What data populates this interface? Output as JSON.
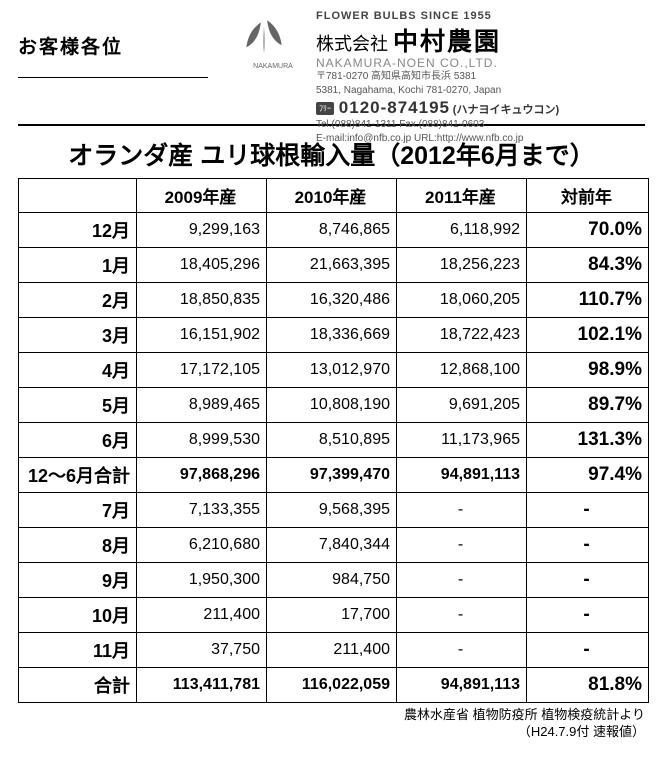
{
  "header": {
    "greeting": "お客様各位",
    "since": "FLOWER BULBS SINCE 1955",
    "company_jp_prefix": "株式会社",
    "company_jp_main": "中村農園",
    "company_en": "NAKAMURA-NOEN CO.,LTD.",
    "logo_label": "NAKAMURA",
    "addr_jp": "〒781-0270 高知県高知市長浜 5381",
    "addr_en": "5381, Nagahama, Kochi 781-0270, Japan",
    "free_label": "ﾌﾘｰ",
    "tel_big": "0120-874195",
    "tel_kana": "(ハナヨイキュウコン)",
    "tel_fax": "Tel.(088)841-1311  Fax.(088)841-0603",
    "email_url": "E-mail:info@nfb.co.jp  URL:http://www.nfb.co.jp"
  },
  "title": "オランダ産 ユリ球根輸入量（2012年6月まで）",
  "columns": {
    "month": "",
    "y2009": "2009年産",
    "y2010": "2010年産",
    "y2011": "2011年産",
    "yoy": "対前年"
  },
  "rows": [
    {
      "month": "12月",
      "y2009": "9,299,163",
      "y2010": "8,746,865",
      "y2011": "6,118,992",
      "yoy": "70.0%",
      "bold": false
    },
    {
      "month": "1月",
      "y2009": "18,405,296",
      "y2010": "21,663,395",
      "y2011": "18,256,223",
      "yoy": "84.3%",
      "bold": false
    },
    {
      "month": "2月",
      "y2009": "18,850,835",
      "y2010": "16,320,486",
      "y2011": "18,060,205",
      "yoy": "110.7%",
      "bold": false
    },
    {
      "month": "3月",
      "y2009": "16,151,902",
      "y2010": "18,336,669",
      "y2011": "18,722,423",
      "yoy": "102.1%",
      "bold": false
    },
    {
      "month": "4月",
      "y2009": "17,172,105",
      "y2010": "13,012,970",
      "y2011": "12,868,100",
      "yoy": "98.9%",
      "bold": false
    },
    {
      "month": "5月",
      "y2009": "8,989,465",
      "y2010": "10,808,190",
      "y2011": "9,691,205",
      "yoy": "89.7%",
      "bold": false
    },
    {
      "month": "6月",
      "y2009": "8,999,530",
      "y2010": "8,510,895",
      "y2011": "11,173,965",
      "yoy": "131.3%",
      "bold": false
    },
    {
      "month": "12～6月合計",
      "y2009": "97,868,296",
      "y2010": "97,399,470",
      "y2011": "94,891,113",
      "yoy": "97.4%",
      "bold": true
    },
    {
      "month": "7月",
      "y2009": "7,133,355",
      "y2010": "9,568,395",
      "y2011": "-",
      "yoy": "-",
      "bold": false
    },
    {
      "month": "8月",
      "y2009": "6,210,680",
      "y2010": "7,840,344",
      "y2011": "-",
      "yoy": "-",
      "bold": false
    },
    {
      "month": "9月",
      "y2009": "1,950,300",
      "y2010": "984,750",
      "y2011": "-",
      "yoy": "-",
      "bold": false
    },
    {
      "month": "10月",
      "y2009": "211,400",
      "y2010": "17,700",
      "y2011": "-",
      "yoy": "-",
      "bold": false
    },
    {
      "month": "11月",
      "y2009": "37,750",
      "y2010": "211,400",
      "y2011": "-",
      "yoy": "-",
      "bold": false
    },
    {
      "month": "合計",
      "y2009": "113,411,781",
      "y2010": "116,022,059",
      "y2011": "94,891,113",
      "yoy": "81.8%",
      "bold": true
    }
  ],
  "source": {
    "line1": "農林水産省 植物防疫所 植物検疫統計より",
    "line2": "（H24.7.9付 速報値）"
  },
  "style": {
    "page_bg": "#ffffff",
    "text_color": "#000000",
    "border_color": "#000000",
    "title_fontsize": 25,
    "cell_fontsize": 17,
    "month_fontsize": 18,
    "pct_fontsize": 19
  }
}
